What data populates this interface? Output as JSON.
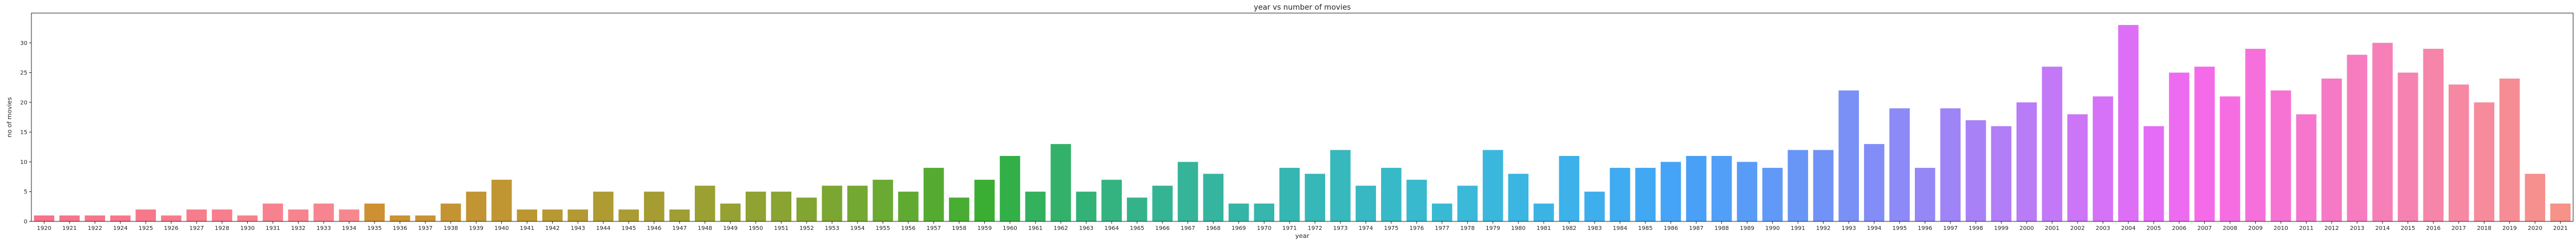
{
  "chart_data": {
    "type": "bar",
    "title": "year vs number of movies",
    "xlabel": "year",
    "ylabel": "no of movies",
    "ylim": [
      0,
      35
    ],
    "y_ticks": [
      0,
      5,
      10,
      15,
      20,
      25,
      30
    ],
    "grid": false,
    "legend": "none",
    "categories": [
      "1920",
      "1921",
      "1922",
      "1924",
      "1925",
      "1926",
      "1927",
      "1928",
      "1930",
      "1931",
      "1932",
      "1933",
      "1934",
      "1935",
      "1936",
      "1937",
      "1938",
      "1939",
      "1940",
      "1941",
      "1942",
      "1943",
      "1944",
      "1945",
      "1946",
      "1947",
      "1948",
      "1949",
      "1950",
      "1951",
      "1952",
      "1953",
      "1954",
      "1955",
      "1956",
      "1957",
      "1958",
      "1959",
      "1960",
      "1961",
      "1962",
      "1963",
      "1964",
      "1965",
      "1966",
      "1967",
      "1968",
      "1969",
      "1970",
      "1971",
      "1972",
      "1973",
      "1974",
      "1975",
      "1976",
      "1977",
      "1978",
      "1979",
      "1980",
      "1981",
      "1982",
      "1983",
      "1984",
      "1985",
      "1986",
      "1987",
      "1988",
      "1989",
      "1990",
      "1991",
      "1992",
      "1993",
      "1994",
      "1995",
      "1996",
      "1997",
      "1998",
      "1999",
      "2000",
      "2001",
      "2002",
      "2003",
      "2004",
      "2005",
      "2006",
      "2007",
      "2008",
      "2009",
      "2010",
      "2011",
      "2012",
      "2013",
      "2014",
      "2015",
      "2016",
      "2017",
      "2018",
      "2019",
      "2020",
      "2021"
    ],
    "values": [
      1,
      1,
      1,
      1,
      2,
      1,
      2,
      2,
      1,
      3,
      2,
      3,
      2,
      3,
      1,
      1,
      3,
      5,
      7,
      2,
      2,
      2,
      5,
      2,
      5,
      2,
      6,
      3,
      5,
      5,
      4,
      6,
      6,
      7,
      5,
      9,
      4,
      7,
      11,
      5,
      13,
      5,
      7,
      4,
      6,
      10,
      8,
      3,
      3,
      9,
      8,
      12,
      6,
      9,
      7,
      3,
      6,
      12,
      8,
      3,
      11,
      5,
      9,
      9,
      10,
      11,
      11,
      10,
      9,
      12,
      12,
      22,
      13,
      19,
      9,
      19,
      17,
      16,
      20,
      26,
      18,
      21,
      33,
      16,
      25,
      26,
      21,
      29,
      22,
      18,
      24,
      28,
      30,
      25,
      29,
      23,
      20,
      24,
      8,
      3
    ],
    "colors": [
      "#f77189",
      "#f7738a",
      "#f7758a",
      "#f7768b",
      "#f7788b",
      "#f77a8c",
      "#f77c8c",
      "#f77e8d",
      "#f7808d",
      "#f7818e",
      "#f7838e",
      "#f7858f",
      "#f7878f",
      "#ce9032",
      "#cb9232",
      "#c89332",
      "#c59432",
      "#c29532",
      "#bf9632",
      "#bb9732",
      "#b79832",
      "#b39932",
      "#ae9b32",
      "#aa9c32",
      "#a59d32",
      "#a09e32",
      "#9ba032",
      "#95a132",
      "#8fa232",
      "#89a432",
      "#82a532",
      "#7ba632",
      "#73a832",
      "#6aa932",
      "#60aa32",
      "#55ab32",
      "#48ad32",
      "#3aae32",
      "#32b047",
      "#33b15c",
      "#33b16b",
      "#33b277",
      "#34b381",
      "#34b38a",
      "#34b492",
      "#35b499",
      "#35b5a0",
      "#35b5a6",
      "#36b6ac",
      "#36b6b2",
      "#36b7b8",
      "#37b8bd",
      "#37b8c2",
      "#38b9c8",
      "#38b9cd",
      "#39bad3",
      "#3ab9d8",
      "#3bb7dd",
      "#3bb5e1",
      "#3cb3e5",
      "#3db1e9",
      "#3eaeed",
      "#3fabf1",
      "#41a8f4",
      "#45a4f7",
      "#4aa0f7",
      "#519ff7",
      "#589cf7",
      "#6099f7",
      "#6896f7",
      "#7193f7",
      "#7a90f7",
      "#838df7",
      "#8c8af7",
      "#9687f7",
      "#9f84f7",
      "#a881f7",
      "#b17ef7",
      "#ba7bf7",
      "#c378f7",
      "#cc75f7",
      "#d572f7",
      "#dd6ff7",
      "#e56cf6",
      "#ed6bf0",
      "#f56ae9",
      "#f66de2",
      "#f670db",
      "#f673d4",
      "#f676cd",
      "#f679c6",
      "#f67cbf",
      "#f67fb8",
      "#f682b1",
      "#f685aa",
      "#f688a3",
      "#f68b9c",
      "#f68d95",
      "#f6908e",
      "#f69287"
    ]
  }
}
